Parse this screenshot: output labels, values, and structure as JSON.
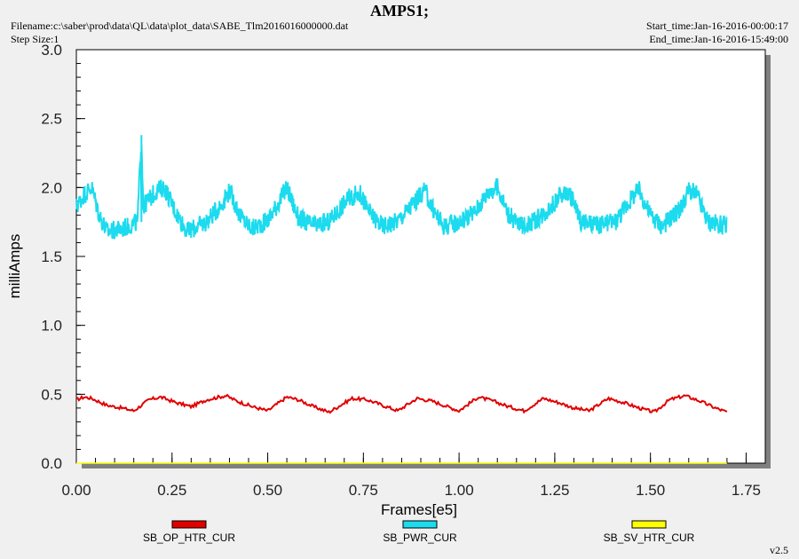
{
  "header": {
    "title": "AMPS1;",
    "filename": "Filename:c:\\saber\\prod\\data\\QL\\data\\plot_data\\SABE_Tlm2016016000000.dat",
    "step_size": "Step Size:1",
    "start_time": "Start_time:Jan-16-2016-00:00:17",
    "end_time": "End_time:Jan-16-2016-15:49:00"
  },
  "footer": {
    "version": "v2.5"
  },
  "chart_data": {
    "type": "line",
    "title": "AMPS1;",
    "xlabel": "Frames[e5]",
    "ylabel": "milliAmps",
    "xlim": [
      0.0,
      1.8
    ],
    "ylim": [
      0.0,
      3.0
    ],
    "xticks": [
      "0.00",
      "0.25",
      "0.50",
      "0.75",
      "1.00",
      "1.25",
      "1.50",
      "1.75"
    ],
    "yticks": [
      "0.0",
      "0.5",
      "1.0",
      "1.5",
      "2.0",
      "2.5",
      "3.0"
    ],
    "grid": false,
    "legend_position": "bottom",
    "series": [
      {
        "name": "SB_OP_HTR_CUR",
        "color": "#e00000",
        "x": [
          0.0,
          0.02,
          0.04,
          0.08,
          0.12,
          0.15,
          0.19,
          0.22,
          0.26,
          0.3,
          0.34,
          0.39,
          0.42,
          0.46,
          0.5,
          0.55,
          0.58,
          0.62,
          0.66,
          0.72,
          0.76,
          0.8,
          0.84,
          0.89,
          0.93,
          0.97,
          1.0,
          1.05,
          1.09,
          1.13,
          1.17,
          1.22,
          1.26,
          1.3,
          1.34,
          1.39,
          1.43,
          1.47,
          1.51,
          1.55,
          1.59,
          1.63,
          1.67,
          1.7
        ],
        "y": [
          0.46,
          0.48,
          0.47,
          0.42,
          0.4,
          0.38,
          0.46,
          0.48,
          0.44,
          0.41,
          0.46,
          0.49,
          0.45,
          0.41,
          0.38,
          0.48,
          0.46,
          0.41,
          0.37,
          0.47,
          0.46,
          0.42,
          0.38,
          0.47,
          0.45,
          0.41,
          0.38,
          0.48,
          0.45,
          0.41,
          0.38,
          0.47,
          0.44,
          0.4,
          0.38,
          0.47,
          0.44,
          0.4,
          0.37,
          0.46,
          0.49,
          0.45,
          0.4,
          0.37
        ]
      },
      {
        "name": "SB_PWR_CUR",
        "color": "#1cdbee",
        "x": [
          0.0,
          0.02,
          0.04,
          0.06,
          0.08,
          0.12,
          0.16,
          0.17,
          0.175,
          0.18,
          0.21,
          0.23,
          0.26,
          0.29,
          0.34,
          0.38,
          0.4,
          0.43,
          0.46,
          0.5,
          0.53,
          0.55,
          0.58,
          0.62,
          0.66,
          0.71,
          0.74,
          0.77,
          0.8,
          0.84,
          0.88,
          0.91,
          0.93,
          0.96,
          1.0,
          1.04,
          1.08,
          1.1,
          1.13,
          1.16,
          1.2,
          1.24,
          1.27,
          1.29,
          1.32,
          1.36,
          1.41,
          1.45,
          1.47,
          1.5,
          1.53,
          1.58,
          1.6,
          1.62,
          1.65,
          1.7
        ],
        "y": [
          1.86,
          1.95,
          2.0,
          1.8,
          1.68,
          1.7,
          1.75,
          2.38,
          1.85,
          1.88,
          1.98,
          2.0,
          1.82,
          1.68,
          1.75,
          1.88,
          1.98,
          1.78,
          1.7,
          1.76,
          1.9,
          2.0,
          1.78,
          1.72,
          1.75,
          1.92,
          1.96,
          1.8,
          1.72,
          1.76,
          1.88,
          1.98,
          1.85,
          1.72,
          1.75,
          1.82,
          1.98,
          2.0,
          1.8,
          1.72,
          1.76,
          1.86,
          1.96,
          1.95,
          1.75,
          1.72,
          1.76,
          1.92,
          1.98,
          1.8,
          1.72,
          1.85,
          1.98,
          1.95,
          1.75,
          1.72
        ]
      },
      {
        "name": "SB_SV_HTR_CUR",
        "color": "#ffff00",
        "x": [
          0.0,
          1.7
        ],
        "y": [
          0.0,
          0.0
        ]
      }
    ]
  }
}
